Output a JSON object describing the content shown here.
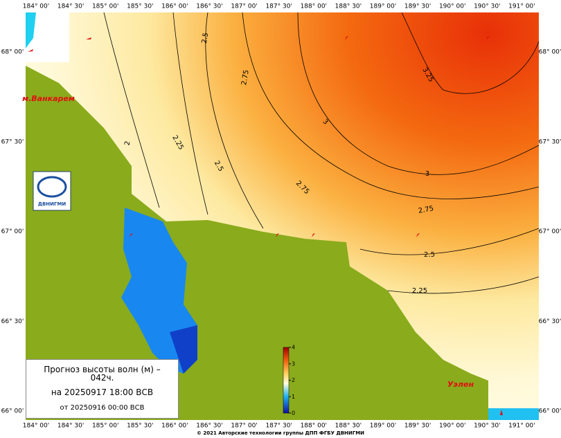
{
  "map": {
    "lon_labels": [
      "184° 00'",
      "184° 30'",
      "185° 00'",
      "185° 30'",
      "186° 00'",
      "186° 30'",
      "187° 00'",
      "187° 30'",
      "188° 00'",
      "188° 30'",
      "189° 00'",
      "189° 30'",
      "190° 00'",
      "190° 30'",
      "191° 00'"
    ],
    "lat_labels": [
      "68° 00'",
      "67° 30'",
      "67° 00'",
      "66° 30'",
      "66° 00'"
    ],
    "contour_labels": [
      "2.5",
      "2.75",
      "3",
      "3.25",
      "3",
      "2.75",
      "2.5",
      "2.25",
      "2",
      "2.75",
      "2.5",
      "2.25"
    ],
    "places": [
      "м.Ванкарем",
      "Уэлен"
    ],
    "logo": "ДВНИГМИ"
  },
  "info": {
    "title": "Прогноз высоты волн (м) – 042ч.",
    "valid": "на 20250917 18:00 ВСВ",
    "issued": "от 20250916 00:00 ВСВ"
  },
  "colorbar": {
    "range": [
      0,
      4
    ],
    "ticks": [
      0,
      1,
      2,
      3,
      4
    ]
  },
  "footer": "© 2021 Авторские технологии группы ДПП ФГБУ ДВНИГМИ"
}
